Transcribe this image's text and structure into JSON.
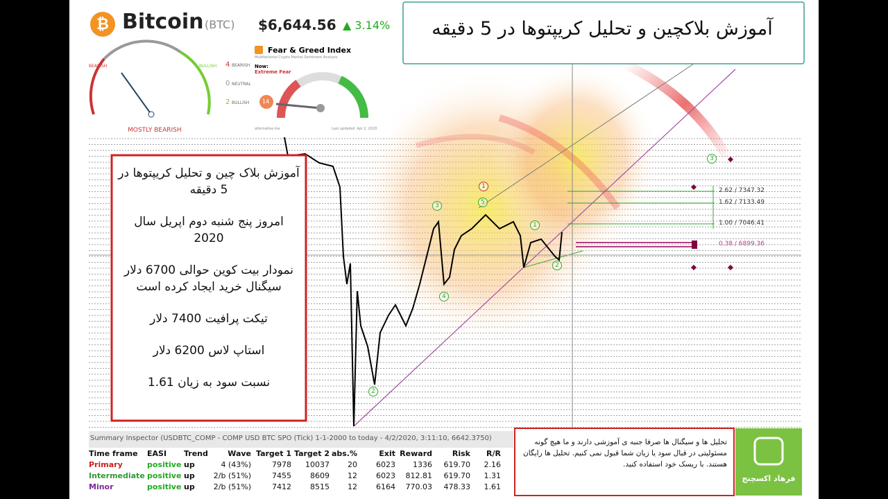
{
  "header": {
    "coin": "Bitcoin",
    "symbol": "(BTC)",
    "price": "$6,644.56",
    "change": "▲ 3.14%"
  },
  "sentiment": {
    "left_label": "BEARISH",
    "right_label": "BULLISH",
    "counts": [
      "4",
      "0",
      "2"
    ],
    "count_labels": [
      "BEARISH",
      "NEUTRAL",
      "BULLISH"
    ],
    "verdict": "MOSTLY BEARISH"
  },
  "fear_greed": {
    "title": "Fear & Greed Index",
    "subtitle": "Multifactorial Crypto Market Sentiment Analysis",
    "now": "Now:",
    "state": "Extreme Fear",
    "value": "14",
    "source": "alternative.me",
    "updated": "Last updated: Apr 2, 2020"
  },
  "title": "آموزش بلاکچین و تحلیل کریپتوها در 5 دقیقه",
  "notes": [
    "آموزش بلاک چین و تحلیل کریپتوها در 5 دقیقه",
    "امروز پنج شنبه دوم اپریل سال 2020",
    "نمودار بیت کوین حوالی 6700 دلار سیگنال خرید ایجاد کرده است",
    "تیکت پرافیت 7400 دلار",
    "استاپ لاس 6200 دلار",
    "نسبت سود به زیان 1.61"
  ],
  "chart": {
    "fib_labels": [
      "2.62 / 7347.32",
      "1.62 / 7133.49",
      "1.00 / 7046.41",
      "0.38 / 6899.36"
    ],
    "wave_labels": [
      "1",
      "3",
      "5",
      "4",
      "2",
      "1",
      "2",
      "3"
    ]
  },
  "summary": {
    "caption": "Summary Inspector (USDBTC_COMP - COMP USD BTC SPO (Tick) 1-1-2000 to today - 4/2/2020, 3:11:10, 6642.3750)",
    "headers": [
      "Time frame",
      "EASI",
      "Trend",
      "Wave",
      "Target 1",
      "Target 2",
      "abs.%",
      "Exit",
      "Reward",
      "Risk",
      "R/R"
    ],
    "rows": [
      [
        "Primary",
        "positive",
        "up",
        "4 (43%)",
        "7978",
        "10037",
        "20",
        "6023",
        "1336",
        "619.70",
        "2.16"
      ],
      [
        "Intermediate",
        "positive",
        "up",
        "2/b (51%)",
        "7455",
        "8609",
        "12",
        "6023",
        "812.81",
        "619.70",
        "1.31"
      ],
      [
        "Minor",
        "positive",
        "up",
        "2/b (51%)",
        "7412",
        "8515",
        "12",
        "6164",
        "770.03",
        "478.33",
        "1.61"
      ]
    ]
  },
  "disclaimer": "تحلیل ها و سیگنال ها صرفا جنبه ی آموزشی دارند و ما هیچ گونه مسئولیتی در قبال سود یا زیان شما قبول نمی کنیم. تحلیل ها رایگان هستند. با ریسک خود استفاده کنید.",
  "logo": "فرهاد اکسچنج"
}
